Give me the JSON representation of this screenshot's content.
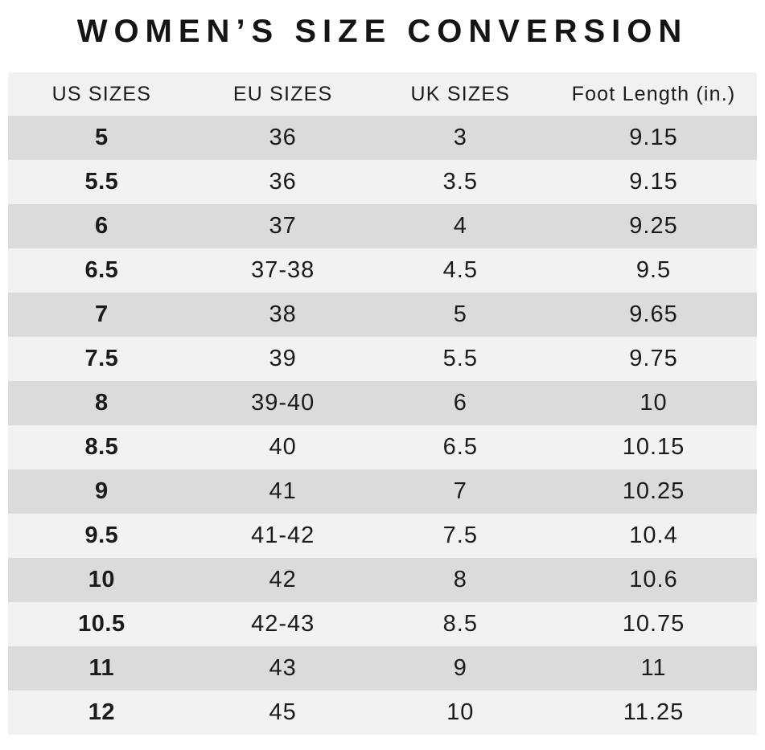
{
  "title": "WOMEN’S SIZE CONVERSION",
  "colors": {
    "background": "#ffffff",
    "header_bg": "#f1f1f1",
    "row_dark": "#dbdbdd",
    "row_light": "#f2f2f3",
    "text": "#1b1b1b"
  },
  "chart_data": {
    "type": "table",
    "title": "WOMEN’S SIZE CONVERSION",
    "columns": [
      "US SIZES",
      "EU SIZES",
      "UK SIZES",
      "Foot Length (in.)"
    ],
    "rows": [
      [
        "5",
        "36",
        "3",
        "9.15"
      ],
      [
        "5.5",
        "36",
        "3.5",
        "9.15"
      ],
      [
        "6",
        "37",
        "4",
        "9.25"
      ],
      [
        "6.5",
        "37-38",
        "4.5",
        "9.5"
      ],
      [
        "7",
        "38",
        "5",
        "9.65"
      ],
      [
        "7.5",
        "39",
        "5.5",
        "9.75"
      ],
      [
        "8",
        "39-40",
        "6",
        "10"
      ],
      [
        "8.5",
        "40",
        "6.5",
        "10.15"
      ],
      [
        "9",
        "41",
        "7",
        "10.25"
      ],
      [
        "9.5",
        "41-42",
        "7.5",
        "10.4"
      ],
      [
        "10",
        "42",
        "8",
        "10.6"
      ],
      [
        "10.5",
        "42-43",
        "8.5",
        "10.75"
      ],
      [
        "11",
        "43",
        "9",
        "11"
      ],
      [
        "12",
        "45",
        "10",
        "11.25"
      ]
    ],
    "layout": {
      "row_striping": "odd rows dark gray, even rows light gray",
      "first_column_bold": true,
      "grid": false
    }
  }
}
